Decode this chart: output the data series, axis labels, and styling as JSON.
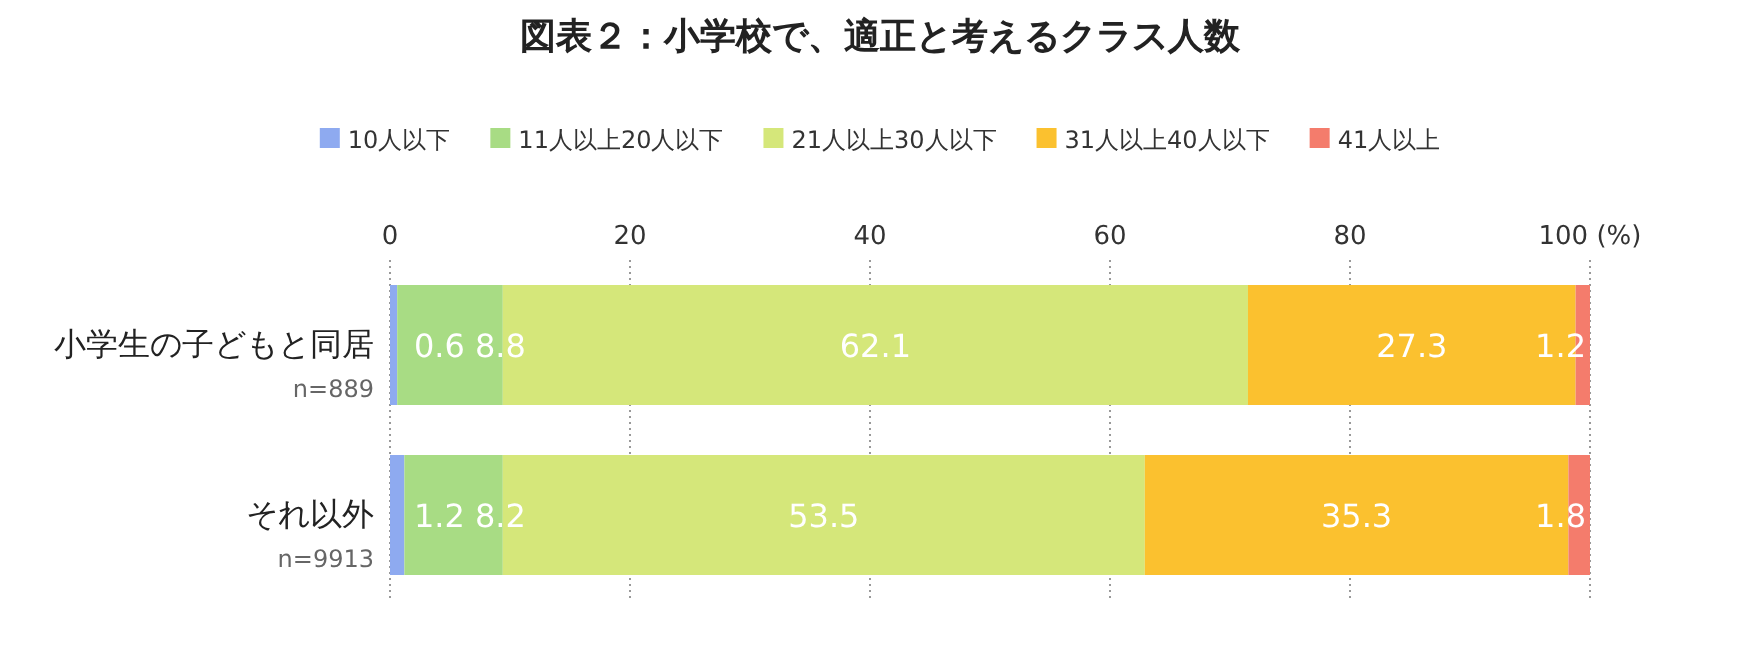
{
  "chart_data": {
    "type": "bar",
    "orientation": "horizontal",
    "stacked": true,
    "title": "図表２：小学校で、適正と考えるクラス人数",
    "categories": [
      "小学生の子どもと同居\nn=889",
      "それ以外\nn=9913"
    ],
    "series": [
      {
        "name": "10人以下",
        "color": "#8eaaf0",
        "values": [
          0.6,
          1.2
        ]
      },
      {
        "name": "11人以上20人以下",
        "color": "#a8dc84",
        "values": [
          8.8,
          8.2
        ]
      },
      {
        "name": "21人以上30人以下",
        "color": "#d5e77a",
        "values": [
          62.1,
          53.5
        ]
      },
      {
        "name": "31人以上40人以下",
        "color": "#fbc12f",
        "values": [
          27.3,
          35.3
        ]
      },
      {
        "name": "41人以上",
        "color": "#f47c6c",
        "values": [
          1.2,
          1.8
        ]
      }
    ],
    "xlim": [
      0,
      100
    ],
    "xticks": [
      0,
      20,
      40,
      60,
      80,
      {
        "value": 100,
        "label": "100 (%)"
      }
    ],
    "grid": "x",
    "legend": "top",
    "data_labels": true
  }
}
